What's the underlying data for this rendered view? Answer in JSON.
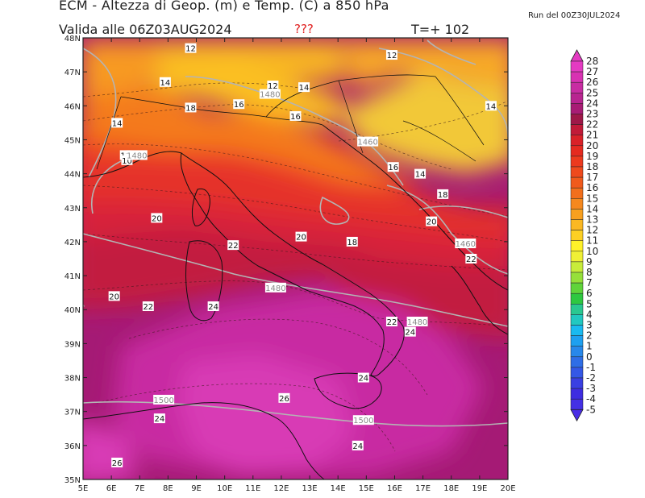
{
  "header": {
    "title": "ECM - Altezza di Geop. (m) e Temp. (C) a 850 hPa",
    "valid": "Valida alle 06Z03AUG2024",
    "flag": "???",
    "timestep": "T=+ 102",
    "run": "Run del 00Z30JUL2024"
  },
  "map": {
    "lon_labels": [
      "5E",
      "6E",
      "7E",
      "8E",
      "9E",
      "10E",
      "11E",
      "12E",
      "13E",
      "14E",
      "15E",
      "16E",
      "17E",
      "18E",
      "19E",
      "20E"
    ],
    "lat_labels": [
      "48N",
      "47N",
      "46N",
      "45N",
      "44N",
      "43N",
      "42N",
      "41N",
      "40N",
      "39N",
      "38N",
      "37N",
      "36N",
      "35N"
    ],
    "temp_labels": [
      {
        "t": "12",
        "lon": 8.8,
        "lat": 47.7
      },
      {
        "t": "12",
        "lon": 15.9,
        "lat": 47.5
      },
      {
        "t": "14",
        "lon": 7.9,
        "lat": 46.7
      },
      {
        "t": "12",
        "lon": 11.7,
        "lat": 46.6
      },
      {
        "t": "14",
        "lon": 12.8,
        "lat": 46.55
      },
      {
        "t": "14",
        "lon": 19.4,
        "lat": 46.0
      },
      {
        "t": "18",
        "lon": 8.8,
        "lat": 45.95
      },
      {
        "t": "16",
        "lon": 10.5,
        "lat": 46.05
      },
      {
        "t": "16",
        "lon": 12.5,
        "lat": 45.7
      },
      {
        "t": "14",
        "lon": 6.2,
        "lat": 45.5
      },
      {
        "t": "12",
        "lon": 6.5,
        "lat": 44.55
      },
      {
        "t": "10",
        "lon": 6.55,
        "lat": 44.4
      },
      {
        "t": "16",
        "lon": 15.95,
        "lat": 44.2
      },
      {
        "t": "14",
        "lon": 16.9,
        "lat": 44.0
      },
      {
        "t": "18",
        "lon": 17.7,
        "lat": 43.4
      },
      {
        "t": "20",
        "lon": 7.6,
        "lat": 42.7
      },
      {
        "t": "20",
        "lon": 17.3,
        "lat": 42.6
      },
      {
        "t": "20",
        "lon": 12.7,
        "lat": 42.15
      },
      {
        "t": "18",
        "lon": 14.5,
        "lat": 42.0
      },
      {
        "t": "22",
        "lon": 10.3,
        "lat": 41.9
      },
      {
        "t": "22",
        "lon": 18.7,
        "lat": 41.5
      },
      {
        "t": "20",
        "lon": 6.1,
        "lat": 40.4
      },
      {
        "t": "22",
        "lon": 7.3,
        "lat": 40.1
      },
      {
        "t": "24",
        "lon": 9.6,
        "lat": 40.1
      },
      {
        "t": "22",
        "lon": 15.9,
        "lat": 39.65
      },
      {
        "t": "24",
        "lon": 16.55,
        "lat": 39.35
      },
      {
        "t": "24",
        "lon": 14.9,
        "lat": 38.0
      },
      {
        "t": "26",
        "lon": 12.1,
        "lat": 37.4
      },
      {
        "t": "24",
        "lon": 7.7,
        "lat": 36.8
      },
      {
        "t": "24",
        "lon": 14.7,
        "lat": 36.0
      },
      {
        "t": "26",
        "lon": 6.2,
        "lat": 35.5
      }
    ],
    "geo_labels": [
      {
        "t": "1480",
        "lon": 11.6,
        "lat": 46.35
      },
      {
        "t": "1480",
        "lon": 6.9,
        "lat": 44.55
      },
      {
        "t": "1460",
        "lon": 15.05,
        "lat": 44.95
      },
      {
        "t": "1460",
        "lon": 18.5,
        "lat": 41.95
      },
      {
        "t": "1480",
        "lon": 11.8,
        "lat": 40.65
      },
      {
        "t": "1480",
        "lon": 16.8,
        "lat": 39.65
      },
      {
        "t": "1500",
        "lon": 7.85,
        "lat": 37.35
      },
      {
        "t": "1500",
        "lon": 14.9,
        "lat": 36.75
      }
    ]
  },
  "colorbar": {
    "labels": [
      "28",
      "27",
      "26",
      "25",
      "24",
      "23",
      "22",
      "21",
      "20",
      "19",
      "18",
      "17",
      "16",
      "15",
      "14",
      "13",
      "12",
      "11",
      "10",
      "9",
      "8",
      "7",
      "6",
      "5",
      "4",
      "3",
      "2",
      "1",
      "0",
      "-1",
      "-2",
      "-3",
      "-4",
      "-5"
    ],
    "colors": [
      "#e43ac2",
      "#d832b2",
      "#c82da2",
      "#b82590",
      "#a81c75",
      "#9e1848",
      "#c11a38",
      "#d92128",
      "#e52a20",
      "#ec3a1e",
      "#ef4a1d",
      "#f05a1c",
      "#f26f1c",
      "#f5881d",
      "#f8a01f",
      "#fbb823",
      "#fdd024",
      "#fff129",
      "#f0f035",
      "#c8ec3a",
      "#96e03a",
      "#60d43a",
      "#2ec840",
      "#2ac890",
      "#22c8c0",
      "#1abaf0",
      "#1ea0f0",
      "#2888ea",
      "#2f6ee6",
      "#3458e6",
      "#3a40e2",
      "#3e2ce0",
      "#4430e4"
    ]
  },
  "colors": {
    "map_border": "#222222",
    "coast": "#111111",
    "geo_contour": "#b4b4b4"
  }
}
